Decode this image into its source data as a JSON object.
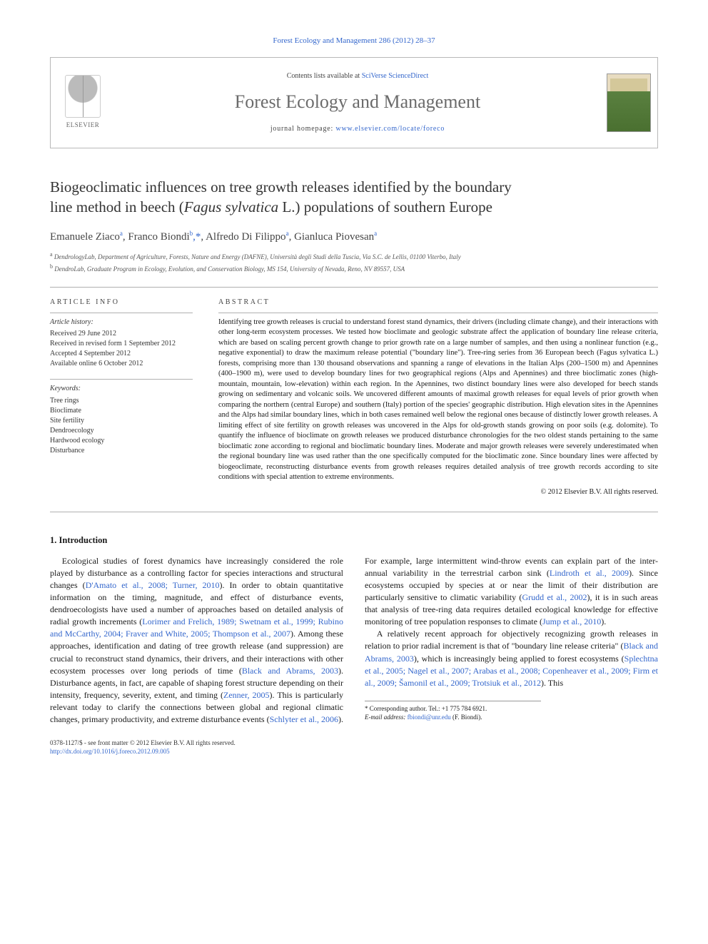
{
  "citation": {
    "journal_link_text": "Forest Ecology and Management 286 (2012) 28–37"
  },
  "header": {
    "contents_prefix": "Contents lists available at ",
    "contents_link": "SciVerse ScienceDirect",
    "journal_name": "Forest Ecology and Management",
    "homepage_prefix": "journal homepage: ",
    "homepage_link": "www.elsevier.com/locate/foreco",
    "elsevier_label": "ELSEVIER"
  },
  "title": {
    "line1": "Biogeoclimatic influences on tree growth releases identified by the boundary",
    "line2_pre": "line method in beech (",
    "line2_italic": "Fagus sylvatica",
    "line2_post": " L.) populations of southern Europe"
  },
  "authors": [
    {
      "name": "Emanuele Ziaco",
      "affil": "a"
    },
    {
      "name": "Franco Biondi",
      "affil": "b",
      "corr": true
    },
    {
      "name": "Alfredo Di Filippo",
      "affil": "a"
    },
    {
      "name": "Gianluca Piovesan",
      "affil": "a"
    }
  ],
  "affiliations": {
    "a": "DendrologyLab, Department of Agriculture, Forests, Nature and Energy (DAFNE), Università degli Studi della Tuscia, Via S.C. de Lellis, 01100 Viterbo, Italy",
    "b": "DendroLab, Graduate Program in Ecology, Evolution, and Conservation Biology, MS 154, University of Nevada, Reno, NV 89557, USA"
  },
  "article_info": {
    "heading": "ARTICLE INFO",
    "history_heading": "Article history:",
    "history": [
      "Received 29 June 2012",
      "Received in revised form 1 September 2012",
      "Accepted 4 September 2012",
      "Available online 6 October 2012"
    ],
    "keywords_heading": "Keywords:",
    "keywords": [
      "Tree rings",
      "Bioclimate",
      "Site fertility",
      "Dendroecology",
      "Hardwood ecology",
      "Disturbance"
    ]
  },
  "abstract": {
    "heading": "ABSTRACT",
    "text": "Identifying tree growth releases is crucial to understand forest stand dynamics, their drivers (including climate change), and their interactions with other long-term ecosystem processes. We tested how bioclimate and geologic substrate affect the application of boundary line release criteria, which are based on scaling percent growth change to prior growth rate on a large number of samples, and then using a nonlinear function (e.g., negative exponential) to draw the maximum release potential (\"boundary line\"). Tree-ring series from 36 European beech (Fagus sylvatica L.) forests, comprising more than 130 thousand observations and spanning a range of elevations in the Italian Alps (200–1500 m) and Apennines (400–1900 m), were used to develop boundary lines for two geographical regions (Alps and Apennines) and three bioclimatic zones (high-mountain, mountain, low-elevation) within each region. In the Apennines, two distinct boundary lines were also developed for beech stands growing on sedimentary and volcanic soils. We uncovered different amounts of maximal growth releases for equal levels of prior growth when comparing the northern (central Europe) and southern (Italy) portion of the species' geographic distribution. High elevation sites in the Apennines and the Alps had similar boundary lines, which in both cases remained well below the regional ones because of distinctly lower growth releases. A limiting effect of site fertility on growth releases was uncovered in the Alps for old-growth stands growing on poor soils (e.g. dolomite). To quantify the influence of bioclimate on growth releases we produced disturbance chronologies for the two oldest stands pertaining to the same bioclimatic zone according to regional and bioclimatic boundary lines. Moderate and major growth releases were severely underestimated when the regional boundary line was used rather than the one specifically computed for the bioclimatic zone. Since boundary lines were affected by biogeoclimate, reconstructing disturbance events from growth releases requires detailed analysis of tree growth records according to site conditions with special attention to extreme environments.",
    "copyright": "© 2012 Elsevier B.V. All rights reserved."
  },
  "introduction": {
    "heading": "1. Introduction",
    "para1_pre": "Ecological studies of forest dynamics have increasingly considered the role played by disturbance as a controlling factor for species interactions and structural changes (",
    "para1_ref1": "D'Amato et al., 2008; Turner, 2010",
    "para1_mid1": "). In order to obtain quantitative information on the timing, magnitude, and effect of disturbance events, dendroecologists have used a number of approaches based on detailed analysis of radial growth increments (",
    "para1_ref2": "Lorimer and Frelich, 1989; Swetnam et al., 1999; Rubino and McCarthy, 2004; Fraver and White, 2005; Thompson et al., 2007",
    "para1_mid2": "). Among these approaches, identification and dating of tree growth release (and suppression) are crucial to reconstruct stand dynamics, their drivers, and their interactions with other ecosystem processes over long periods of time (",
    "para1_ref3": "Black and Abrams, 2003",
    "para1_mid3": "). Disturbance agents, in fact, are capable of shaping forest structure depending on their intensity, frequency, severity, extent, and timing (",
    "para1_ref4": "Zenner, 2005",
    "para1_mid4": "). This is particularly relevant today to clarify the connections between global and regional climatic changes, primary productivity, and extreme disturbance events (",
    "para1_ref5": "Schlyter et al., 2006",
    "para1_mid5": "). For example, large intermittent wind-throw events can explain part of the inter-annual variability in the terrestrial carbon sink (",
    "para1_ref6": "Lindroth et al., 2009",
    "para1_mid6": "). Since ecosystems occupied by species at or near the limit of their distribution are particularly sensitive to climatic variability (",
    "para1_ref7": "Grudd et al., 2002",
    "para1_mid7": "), it is in such areas that analysis of tree-ring data requires detailed ecological knowledge for effective monitoring of tree population responses to climate (",
    "para1_ref8": "Jump et al., 2010",
    "para1_post": ").",
    "para2_pre": "A relatively recent approach for objectively recognizing growth releases in relation to prior radial increment is that of \"boundary line release criteria\" (",
    "para2_ref1": "Black and Abrams, 2003",
    "para2_mid1": "), which is increasingly being applied to forest ecosystems (",
    "para2_ref2": "Splechtna et al., 2005; Nagel et al., 2007; Arabas et al., 2008; Copenheaver et al., 2009; Firm et al., 2009; Šamonil et al., 2009; Trotsiuk et al., 2012",
    "para2_post": "). This"
  },
  "footnote": {
    "corr_label": "* Corresponding author. Tel.: +1 775 784 6921.",
    "email_label": "E-mail address:",
    "email": "fbiondi@unr.edu",
    "email_person": "(F. Biondi)."
  },
  "footer": {
    "issn": "0378-1127/$ - see front matter © 2012 Elsevier B.V. All rights reserved.",
    "doi_label": "",
    "doi": "http://dx.doi.org/10.1016/j.foreco.2012.09.005"
  },
  "colors": {
    "link": "#3366cc",
    "text": "#1a1a1a",
    "muted": "#6b6b6b",
    "border": "#b0b0b0"
  }
}
